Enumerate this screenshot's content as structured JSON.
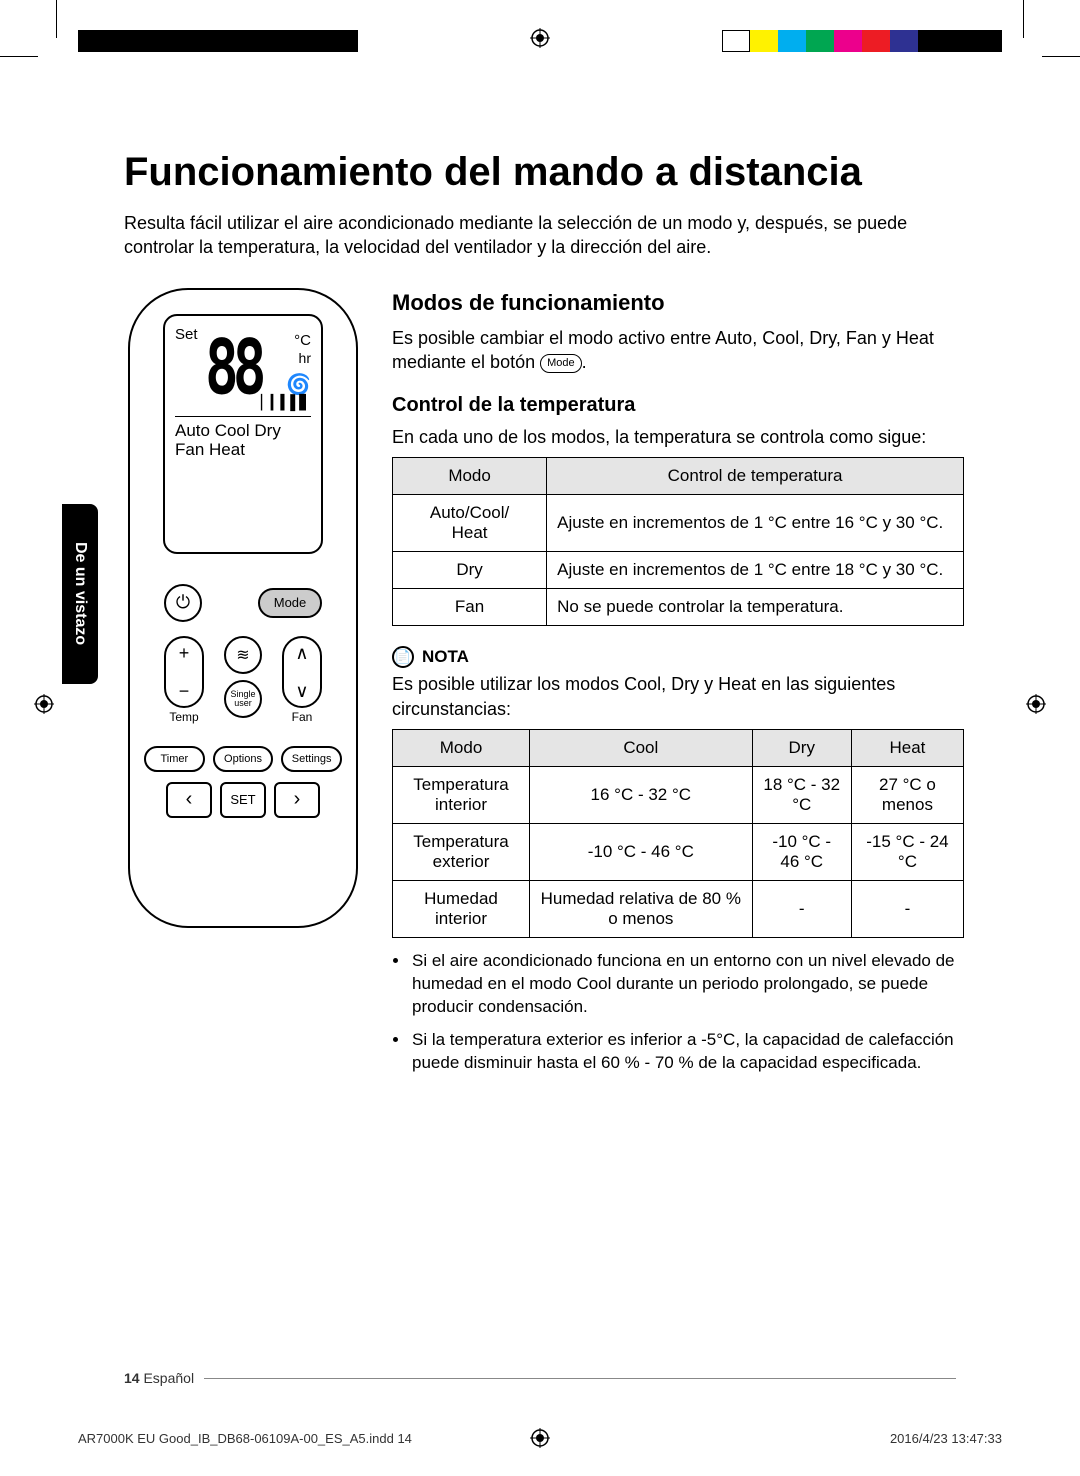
{
  "colors": {
    "left_bar": [
      "#000000",
      "#000000",
      "#000000",
      "#000000",
      "#000000",
      "#000000",
      "#000000",
      "#000000",
      "#000000",
      "#000000"
    ],
    "right_bar": [
      "#ffffff",
      "#fff200",
      "#00aeef",
      "#00a651",
      "#ec008c",
      "#ed1c24",
      "#2e3192",
      "#000000",
      "#000000",
      "#000000"
    ]
  },
  "sidetab": "De un vistazo",
  "title": "Funcionamiento del mando a distancia",
  "intro": "Resulta fácil utilizar el aire acondicionado mediante la selección de un modo y, después, se puede controlar la temperatura, la velocidad del ventilador y la dirección del aire.",
  "remote": {
    "set": "Set",
    "digits": "88",
    "unit": "°C",
    "hr": "hr",
    "modes_line1": "Auto Cool Dry",
    "modes_line2": "Fan   Heat",
    "power": "⏻",
    "mode": "Mode",
    "temp_label": "Temp",
    "fan_label": "Fan",
    "fan_icon": "≋",
    "single_user": "Single\nuser",
    "timer": "Timer",
    "options": "Options",
    "settings": "Settings",
    "set_btn": "SET",
    "left": "‹",
    "right": "›",
    "up": "∧",
    "down": "∨",
    "plus": "+",
    "minus": "−"
  },
  "sections": {
    "modes_title": "Modos de funcionamiento",
    "modes_para1": "Es posible cambiar el modo activo entre Auto, Cool, Dry, Fan y Heat mediante el botón ",
    "mode_pill": "Mode",
    "temp_title": "Control de la temperatura",
    "temp_para": "En cada uno de los modos, la temperatura se controla como sigue:",
    "table1": {
      "h1": "Modo",
      "h2": "Control de temperatura",
      "rows": [
        {
          "mode": "Auto/Cool/\nHeat",
          "ctrl": "Ajuste en incrementos de 1 °C entre 16 °C y 30 °C."
        },
        {
          "mode": "Dry",
          "ctrl": "Ajuste en incrementos de 1 °C entre 18 °C y 30 °C."
        },
        {
          "mode": "Fan",
          "ctrl": "No se puede controlar la temperatura."
        }
      ]
    },
    "note_label": "NOTA",
    "note_para": "Es posible utilizar los modos Cool, Dry y Heat en las siguientes circunstancias:",
    "table2": {
      "headers": [
        "Modo",
        "Cool",
        "Dry",
        "Heat"
      ],
      "rows": [
        [
          "Temperatura interior",
          "16 °C - 32 °C",
          "18 °C - 32 °C",
          "27 °C o menos"
        ],
        [
          "Temperatura exterior",
          "-10 °C - 46 °C",
          "-10 °C - 46 °C",
          "-15 °C - 24 °C"
        ],
        [
          "Humedad interior",
          "Humedad relativa de 80 % o menos",
          "-",
          "-"
        ]
      ]
    },
    "bullets": [
      "Si el aire acondicionado funciona en un entorno con un nivel elevado de humedad en el modo Cool durante un periodo prolongado, se puede producir condensación.",
      "Si la temperatura exterior es inferior a -5°C, la capacidad de calefacción puede disminuir hasta el 60 % - 70 % de la capacidad especificada."
    ]
  },
  "footer": {
    "page": "14",
    "lang": "Español"
  },
  "printfooter": {
    "file": "AR7000K EU Good_IB_DB68-06109A-00_ES_A5.indd   14",
    "stamp": "2016/4/23   13:47:33"
  }
}
